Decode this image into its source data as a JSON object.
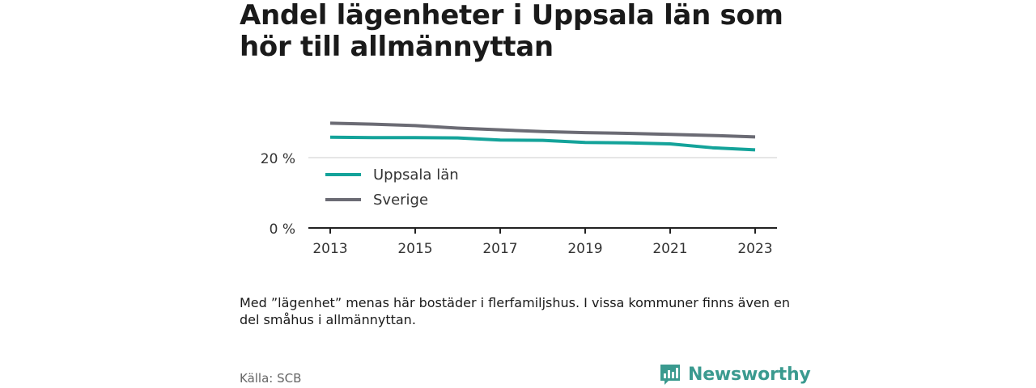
{
  "title": "Andel lägenheter i Uppsala län som hör till allmännyttan",
  "note": "Med ”lägenhet” menas här bostäder i flerfamiljshus. I vissa kommuner finns även en del småhus i allmännyttan.",
  "source": "Källa: SCB",
  "brand": {
    "name": "Newsworthy",
    "icon": "newsworthy-logo-icon",
    "color": "#3a9a8f"
  },
  "chart_data": {
    "type": "line",
    "x": [
      2013,
      2014,
      2015,
      2016,
      2017,
      2018,
      2019,
      2020,
      2021,
      2022,
      2023
    ],
    "x_tick_labels": [
      "2013",
      "2015",
      "2017",
      "2019",
      "2021",
      "2023"
    ],
    "y_tick_labels": [
      "0 %",
      "20 %"
    ],
    "ylim": [
      0,
      30
    ],
    "grid": true,
    "legend_position": "inside-left",
    "series": [
      {
        "name": "Uppsala län",
        "color": "#14a39a",
        "values": [
          25.8,
          25.7,
          25.7,
          25.6,
          25.0,
          24.9,
          24.3,
          24.2,
          23.9,
          22.8,
          22.2
        ]
      },
      {
        "name": "Sverige",
        "color": "#6b6b74",
        "values": [
          29.8,
          29.5,
          29.1,
          28.4,
          27.9,
          27.4,
          27.1,
          26.9,
          26.6,
          26.3,
          25.9
        ]
      }
    ]
  }
}
